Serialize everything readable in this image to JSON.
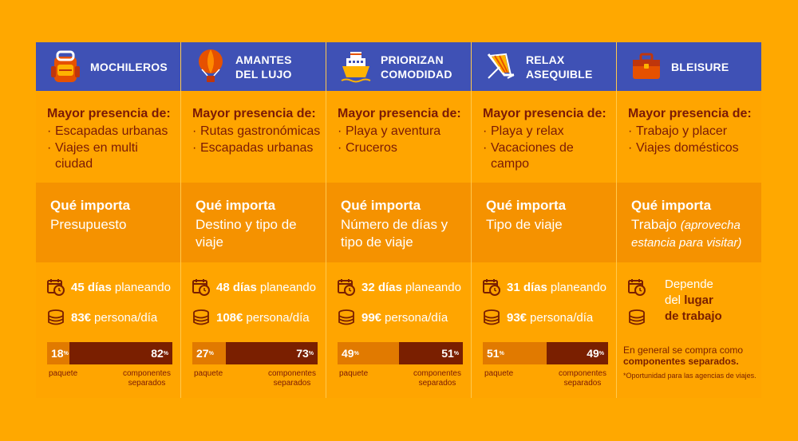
{
  "columns": [
    {
      "title": [
        "MOCHILEROS",
        ""
      ],
      "icon": "backpack-icon",
      "mp_title": "Mayor presencia de:",
      "mp_items": [
        "Escapadas urbanas",
        "Viajes en multi ciudad"
      ],
      "qi_title": "Qué importa",
      "qi_text": "Presupuesto",
      "days_num": "45 días",
      "days_text": "planeando",
      "money_num": "83€",
      "money_text": "persona/día",
      "paquete_pct": "18",
      "componentes_pct": "82",
      "paquete_share": 0.18
    },
    {
      "title": [
        "AMANTES",
        "DEL LUJO"
      ],
      "icon": "hot-air-balloon-icon",
      "mp_title": "Mayor presencia de:",
      "mp_items": [
        "Rutas gastronómicas",
        "Escapadas urbanas"
      ],
      "qi_title": "Qué importa",
      "qi_text": "Destino y tipo de viaje",
      "days_num": "48 días",
      "days_text": "planeando",
      "money_num": "108€",
      "money_text": "persona/día",
      "paquete_pct": "27",
      "componentes_pct": "73",
      "paquete_share": 0.27
    },
    {
      "title": [
        "PRIORIZAN",
        "COMODIDAD"
      ],
      "icon": "cruise-ship-icon",
      "mp_title": "Mayor presencia de:",
      "mp_items": [
        "Playa y aventura",
        "Cruceros"
      ],
      "qi_title": "Qué importa",
      "qi_text": "Número de días y tipo de viaje",
      "days_num": "32 días",
      "days_text": "planeando",
      "money_num": "99€",
      "money_text": "persona/día",
      "paquete_pct": "49",
      "componentes_pct": "51",
      "paquete_share": 0.49
    },
    {
      "title": [
        "RELAX",
        "ASEQUIBLE"
      ],
      "icon": "beach-chair-icon",
      "mp_title": "Mayor presencia de:",
      "mp_items": [
        "Playa y relax",
        "Vacaciones de campo"
      ],
      "qi_title": "Qué importa",
      "qi_text": "Tipo de viaje",
      "days_num": "31 días",
      "days_text": "planeando",
      "money_num": "93€",
      "money_text": "persona/día",
      "paquete_pct": "51",
      "componentes_pct": "49",
      "paquete_share": 0.51
    },
    {
      "title": [
        "BLEISURE",
        ""
      ],
      "icon": "briefcase-icon",
      "mp_title": "Mayor presencia de:",
      "mp_items": [
        "Trabajo y placer",
        "Viajes domésticos"
      ],
      "qi_title": "Qué importa",
      "qi_text": "Trabajo",
      "qi_text_italic": "(aprovecha estancia para visitar)",
      "dep_1": "Depende",
      "dep_2a": "del ",
      "dep_2b": "lugar",
      "dep_3": "de trabajo",
      "note_1": "En general se compra como",
      "note_2": "componentes separados.",
      "note_3": "*Oportunidad para las agencias de viajes."
    }
  ],
  "labels": {
    "percent": "%",
    "paquete": "paquete",
    "componentes_1": "componentes",
    "componentes_2": "separados"
  },
  "colors": {
    "background": "#FFA800",
    "header": "#3F51B5",
    "dark_red": "#7A1F00",
    "orange_bar": "#E17A00"
  }
}
